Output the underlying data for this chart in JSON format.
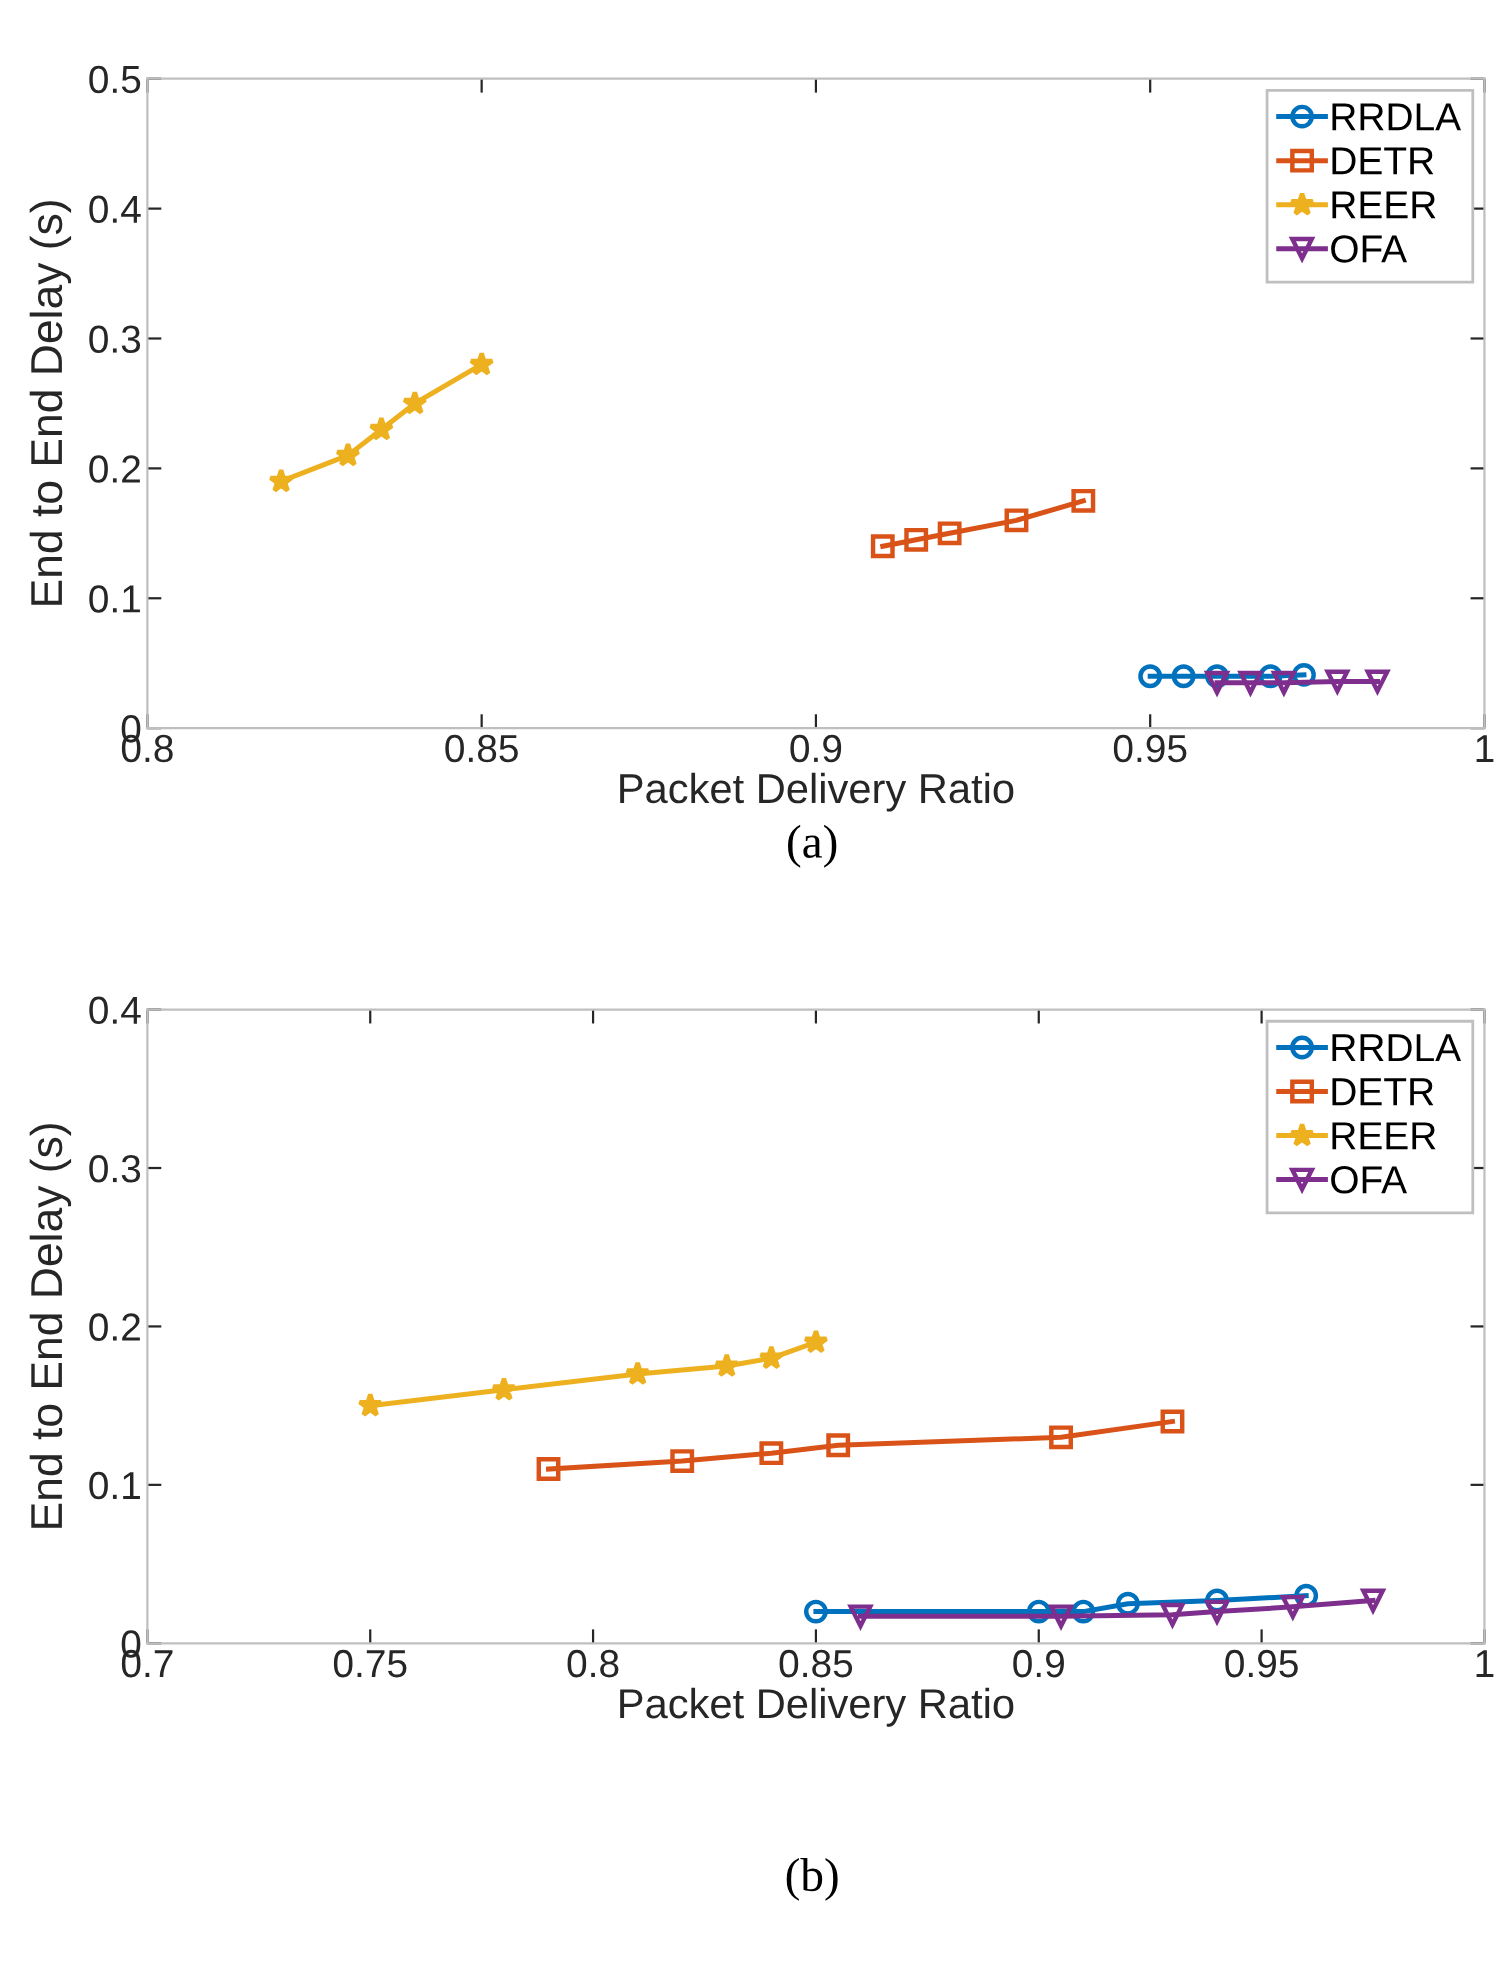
{
  "chart_data": [
    {
      "type": "line",
      "xlabel": "Packet Delivery Ratio",
      "ylabel": "End to End Delay (s)",
      "xlim": [
        0.8,
        1
      ],
      "xticks": [
        0.8,
        0.85,
        0.9,
        0.95,
        1
      ],
      "ylim": [
        0,
        0.5
      ],
      "yticks": [
        0,
        0.1,
        0.2,
        0.3,
        0.4,
        0.5
      ],
      "grid": false,
      "legend": "top right",
      "annotations": [
        "(a)"
      ],
      "series": [
        {
          "name": "RRDLA",
          "color": "#0072bd",
          "marker": "circle",
          "x": [
            0.95,
            0.955,
            0.96,
            0.968,
            0.973
          ],
          "values": [
            0.04,
            0.04,
            0.04,
            0.04,
            0.041
          ]
        },
        {
          "name": "DETR",
          "color": "#d95319",
          "marker": "square",
          "x": [
            0.91,
            0.915,
            0.92,
            0.93,
            0.94
          ],
          "values": [
            0.14,
            0.145,
            0.15,
            0.16,
            0.175
          ]
        },
        {
          "name": "REER",
          "color": "#edb120",
          "marker": "star",
          "x": [
            0.82,
            0.83,
            0.835,
            0.84,
            0.85
          ],
          "values": [
            0.19,
            0.21,
            0.23,
            0.25,
            0.28
          ]
        },
        {
          "name": "OFA",
          "color": "#7e2f8e",
          "marker": "triangle",
          "x": [
            0.96,
            0.965,
            0.97,
            0.978,
            0.984
          ],
          "values": [
            0.035,
            0.035,
            0.035,
            0.036,
            0.036
          ]
        }
      ]
    },
    {
      "type": "line",
      "xlabel": "Packet Delivery Ratio",
      "ylabel": "End to End Delay (s)",
      "xlim": [
        0.7,
        1
      ],
      "xticks": [
        0.7,
        0.75,
        0.8,
        0.85,
        0.9,
        0.95,
        1
      ],
      "ylim": [
        0,
        0.4
      ],
      "yticks": [
        0,
        0.1,
        0.2,
        0.3,
        0.4
      ],
      "grid": false,
      "legend": "top right",
      "annotations": [
        "(b)"
      ],
      "series": [
        {
          "name": "RRDLA",
          "color": "#0072bd",
          "marker": "circle",
          "x": [
            0.85,
            0.9,
            0.91,
            0.92,
            0.94,
            0.96
          ],
          "values": [
            0.02,
            0.02,
            0.02,
            0.025,
            0.027,
            0.03
          ]
        },
        {
          "name": "DETR",
          "color": "#d95319",
          "marker": "square",
          "x": [
            0.79,
            0.82,
            0.84,
            0.855,
            0.905,
            0.93
          ],
          "values": [
            0.11,
            0.115,
            0.12,
            0.125,
            0.13,
            0.14
          ]
        },
        {
          "name": "REER",
          "color": "#edb120",
          "marker": "star",
          "x": [
            0.75,
            0.78,
            0.81,
            0.83,
            0.84,
            0.85
          ],
          "values": [
            0.15,
            0.16,
            0.17,
            0.175,
            0.18,
            0.19
          ]
        },
        {
          "name": "OFA",
          "color": "#7e2f8e",
          "marker": "triangle",
          "x": [
            0.86,
            0.905,
            0.93,
            0.94,
            0.957,
            0.975
          ],
          "values": [
            0.017,
            0.017,
            0.018,
            0.02,
            0.023,
            0.027
          ]
        }
      ]
    }
  ]
}
